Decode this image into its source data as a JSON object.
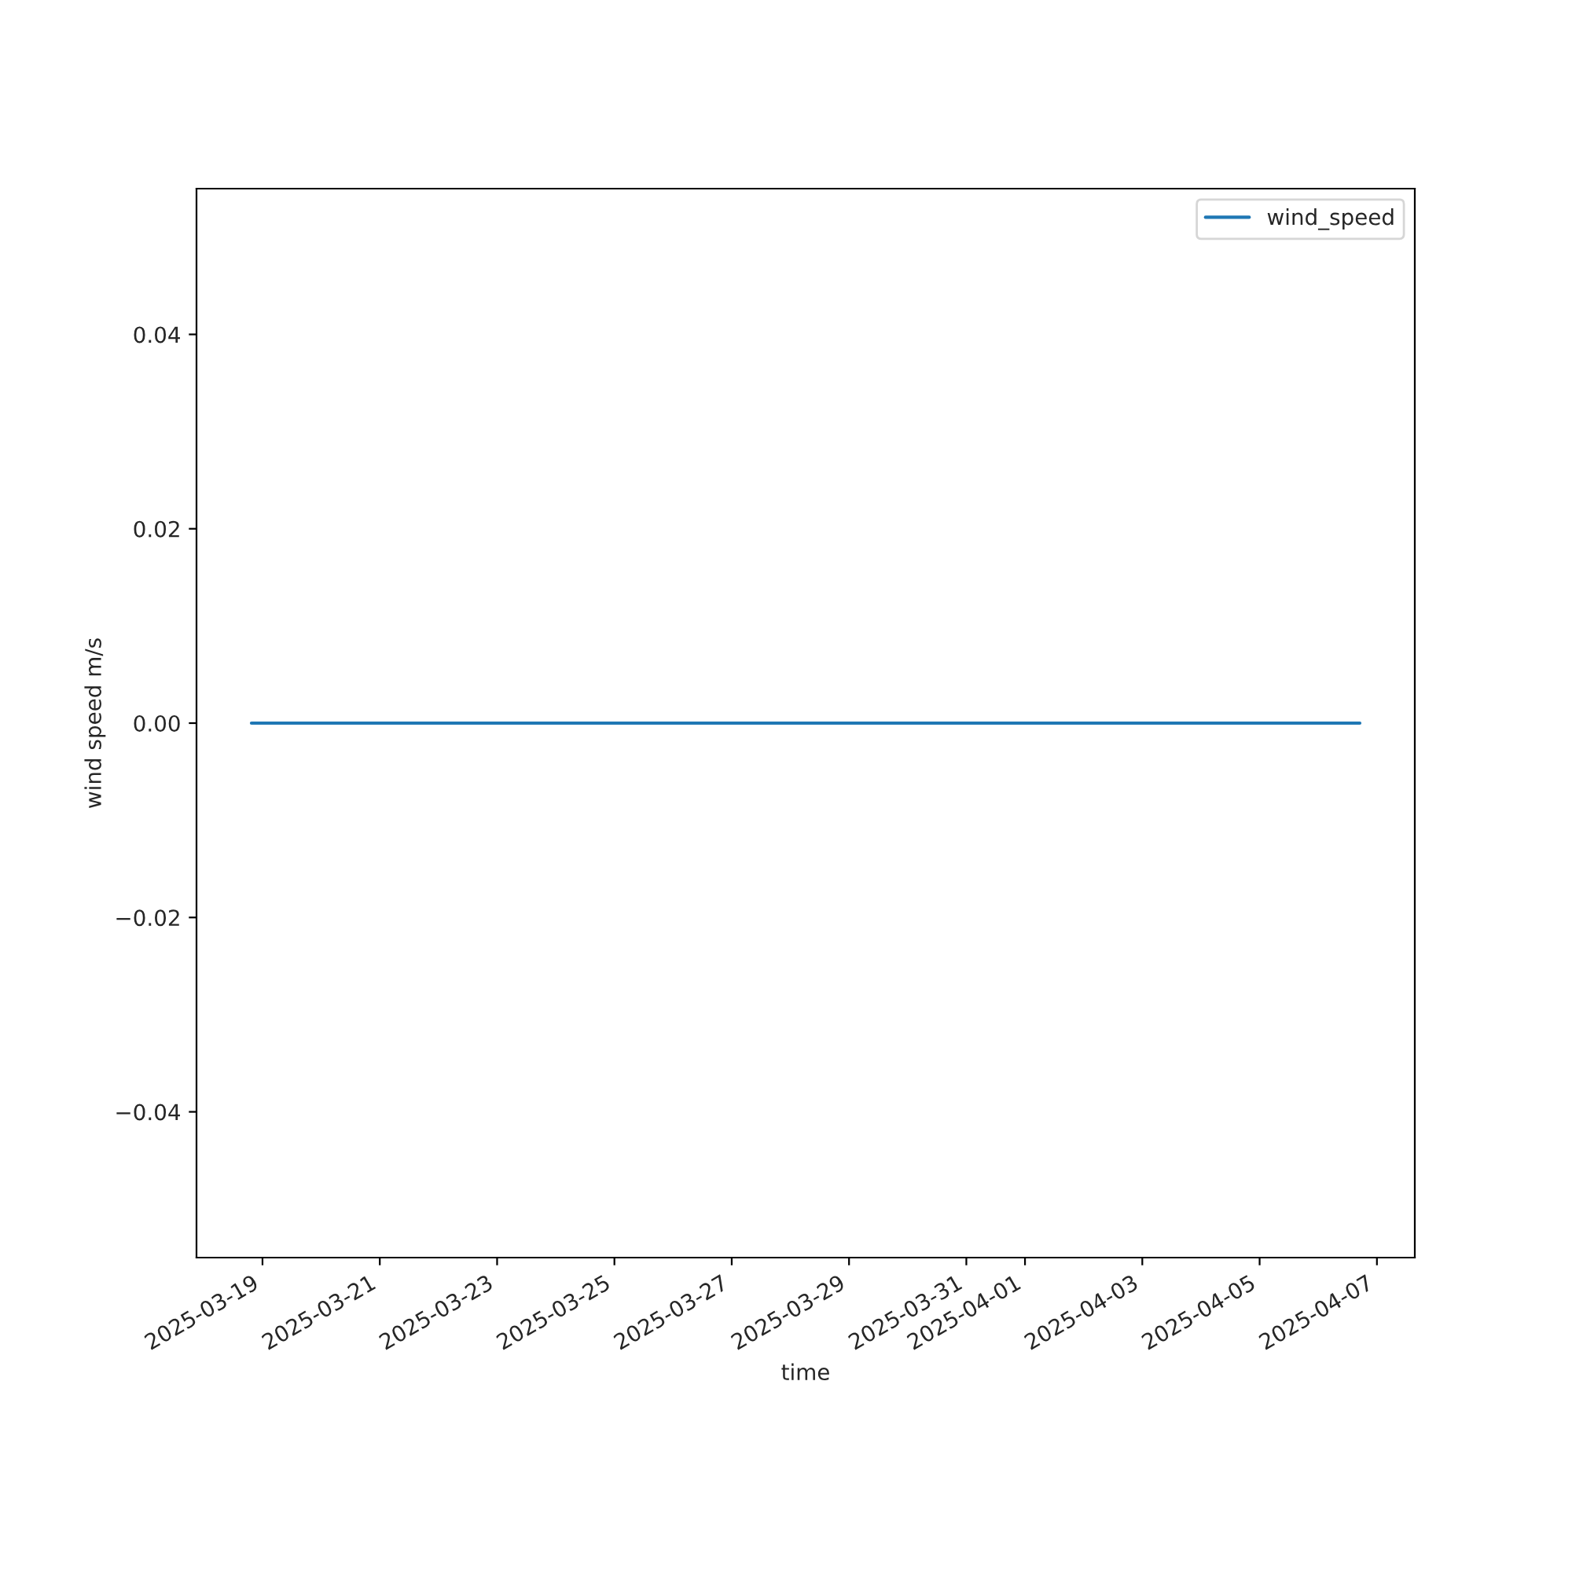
{
  "chart_data": {
    "type": "line",
    "xlabel": "time",
    "ylabel": "wind speed m/s",
    "x": [
      "2025-03-18T19:30",
      "2025-04-06T17:00"
    ],
    "series": [
      {
        "name": "wind_speed",
        "color": "#1f77b4",
        "values": [
          0,
          0
        ]
      }
    ],
    "xlim": [
      "2025-03-17T21:00",
      "2025-04-07T15:30"
    ],
    "xticks": [
      "2025-03-19",
      "2025-03-21",
      "2025-03-23",
      "2025-03-25",
      "2025-03-27",
      "2025-03-29",
      "2025-03-31",
      "2025-04-01",
      "2025-04-03",
      "2025-04-05",
      "2025-04-07"
    ],
    "ylim": [
      -0.055,
      0.055
    ],
    "yticks": [
      {
        "value": -0.04,
        "label": "−0.04"
      },
      {
        "value": -0.02,
        "label": "−0.02"
      },
      {
        "value": 0,
        "label": "0.00"
      },
      {
        "value": 0.02,
        "label": "0.02"
      },
      {
        "value": 0.04,
        "label": "0.04"
      }
    ],
    "legend": "top right",
    "grid": false
  }
}
